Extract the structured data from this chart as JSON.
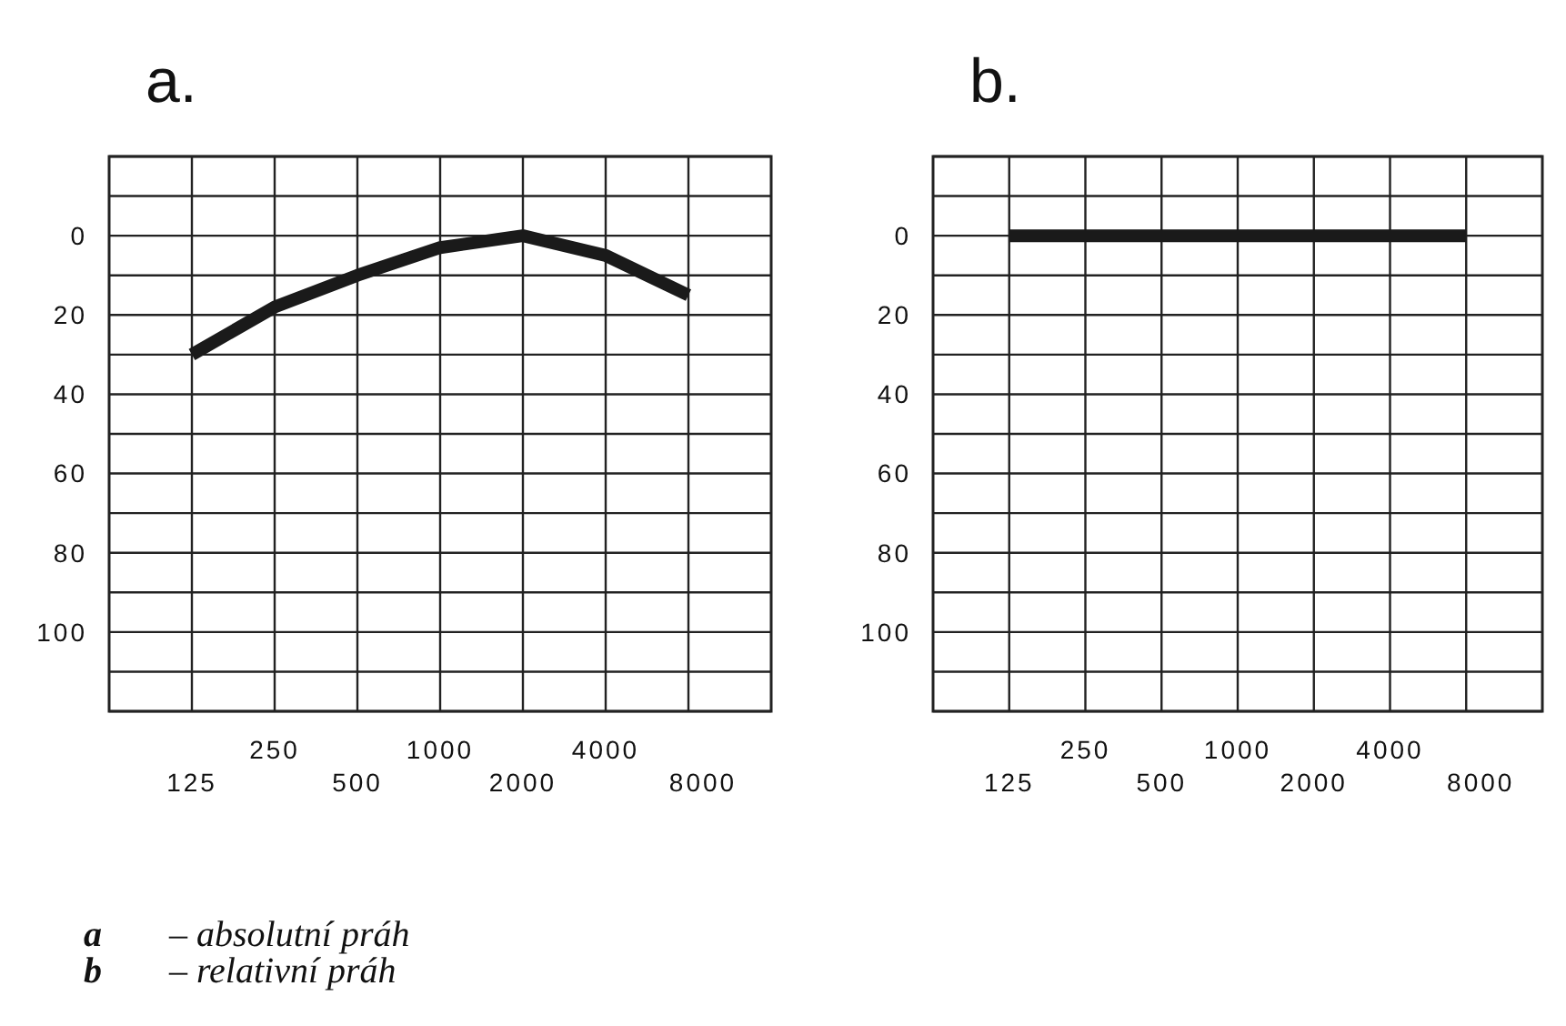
{
  "chart_data": [
    {
      "type": "line",
      "title": "a.",
      "categories": [
        "125",
        "250",
        "500",
        "1000",
        "2000",
        "4000",
        "8000"
      ],
      "series": [
        {
          "color": "#1a1a1a",
          "values": [
            30,
            18,
            10,
            3,
            0,
            5,
            15
          ]
        }
      ],
      "ylim": [
        120,
        -20
      ],
      "yticks": [
        {
          "value": -20,
          "label": null
        },
        {
          "value": -10,
          "label": null
        },
        0,
        {
          "value": 10,
          "label": null
        },
        20,
        {
          "value": 30,
          "label": null
        },
        40,
        {
          "value": 50,
          "label": null
        },
        60,
        {
          "value": 70,
          "label": null
        },
        80,
        {
          "value": 90,
          "label": null
        },
        100,
        {
          "value": 110,
          "label": null
        },
        {
          "value": 120,
          "label": null
        }
      ],
      "grid": true,
      "marker": "none",
      "line_style": "solid",
      "annotations": [
        "a – absolutní práh",
        "b – relativní práh"
      ]
    },
    {
      "type": "line",
      "title": "b.",
      "categories": [
        "125",
        "250",
        "500",
        "1000",
        "2000",
        "4000",
        "8000"
      ],
      "series": [
        {
          "color": "#1a1a1a",
          "values": [
            0,
            0,
            0,
            0,
            0,
            0,
            0
          ]
        }
      ],
      "ylim": [
        120,
        -20
      ],
      "yticks": [
        {
          "value": -20,
          "label": null
        },
        {
          "value": -10,
          "label": null
        },
        0,
        {
          "value": 10,
          "label": null
        },
        20,
        {
          "value": 30,
          "label": null
        },
        40,
        {
          "value": 50,
          "label": null
        },
        60,
        {
          "value": 70,
          "label": null
        },
        80,
        {
          "value": 90,
          "label": null
        },
        100,
        {
          "value": 110,
          "label": null
        },
        {
          "value": 120,
          "label": null
        }
      ],
      "grid": true,
      "marker": "none",
      "line_style": "solid"
    }
  ]
}
